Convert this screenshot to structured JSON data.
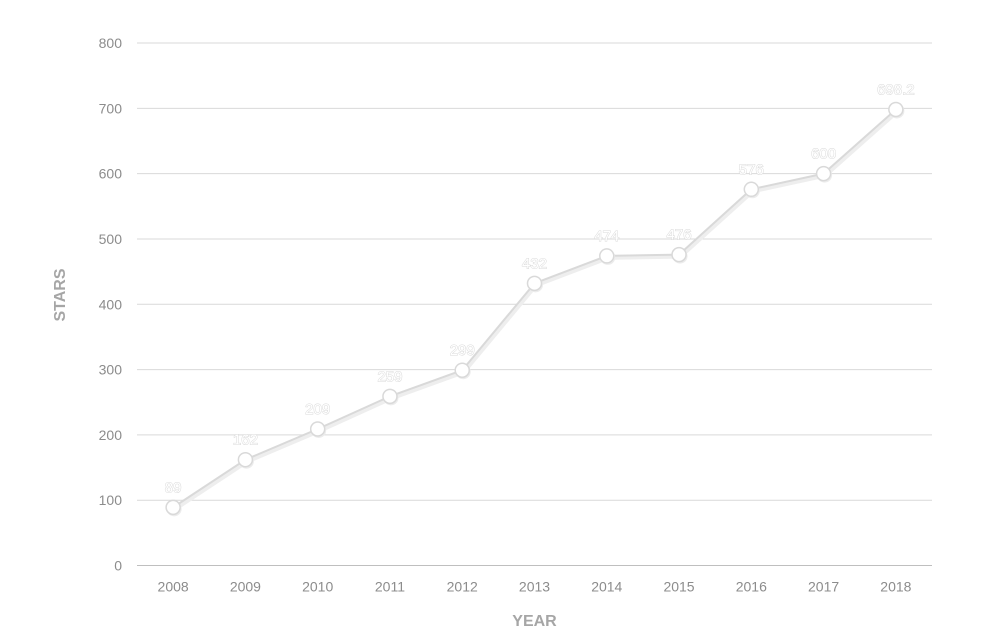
{
  "chart_data": {
    "type": "line",
    "title": "",
    "xlabel": "YEAR",
    "ylabel": "STARS",
    "categories": [
      "2008",
      "2009",
      "2010",
      "2011",
      "2012",
      "2013",
      "2014",
      "2015",
      "2016",
      "2017",
      "2018"
    ],
    "series": [
      {
        "values": [
          89,
          162,
          209,
          259,
          299,
          432,
          474,
          476,
          576,
          600,
          698.2
        ],
        "labels": [
          "89",
          "162",
          "209",
          "259",
          "299",
          "432",
          "474",
          "476",
          "576",
          "600",
          "698.2"
        ]
      }
    ],
    "y_ticks": [
      "0",
      "100",
      "200",
      "300",
      "400",
      "500",
      "600",
      "700",
      "800"
    ],
    "ylim": [
      0,
      800
    ],
    "grid": true,
    "legend": "none",
    "colors": {
      "gridline": "#d9d9d9",
      "axis_line": "#bfbfbf",
      "tick_text": "#8c8c8c",
      "axis_title": "#a6a6a6",
      "series_line": "#d9d9d9",
      "marker_fill": "#ffffff",
      "marker_stroke": "#d9d9d9"
    }
  }
}
